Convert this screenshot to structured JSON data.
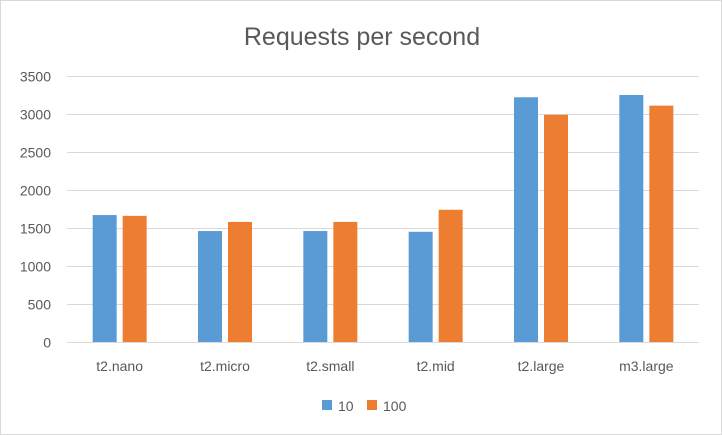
{
  "chart_data": {
    "type": "bar",
    "title": "Requests per second",
    "categories": [
      "t2.nano",
      "t2.micro",
      "t2.small",
      "t2.mid",
      "t2.large",
      "m3.large"
    ],
    "series": [
      {
        "name": "10",
        "values": [
          1670,
          1460,
          1460,
          1450,
          3220,
          3250
        ],
        "color": "#5b9bd5"
      },
      {
        "name": "100",
        "values": [
          1660,
          1580,
          1580,
          1740,
          2990,
          3110
        ],
        "color": "#ed7d31"
      }
    ],
    "y_ticks": [
      "0",
      "500",
      "1000",
      "1500",
      "2000",
      "2500",
      "3000",
      "3500"
    ],
    "ylim": [
      0,
      3500
    ],
    "grid": true,
    "gridline_color": "#d9d9d9",
    "legend_position": "bottom"
  }
}
